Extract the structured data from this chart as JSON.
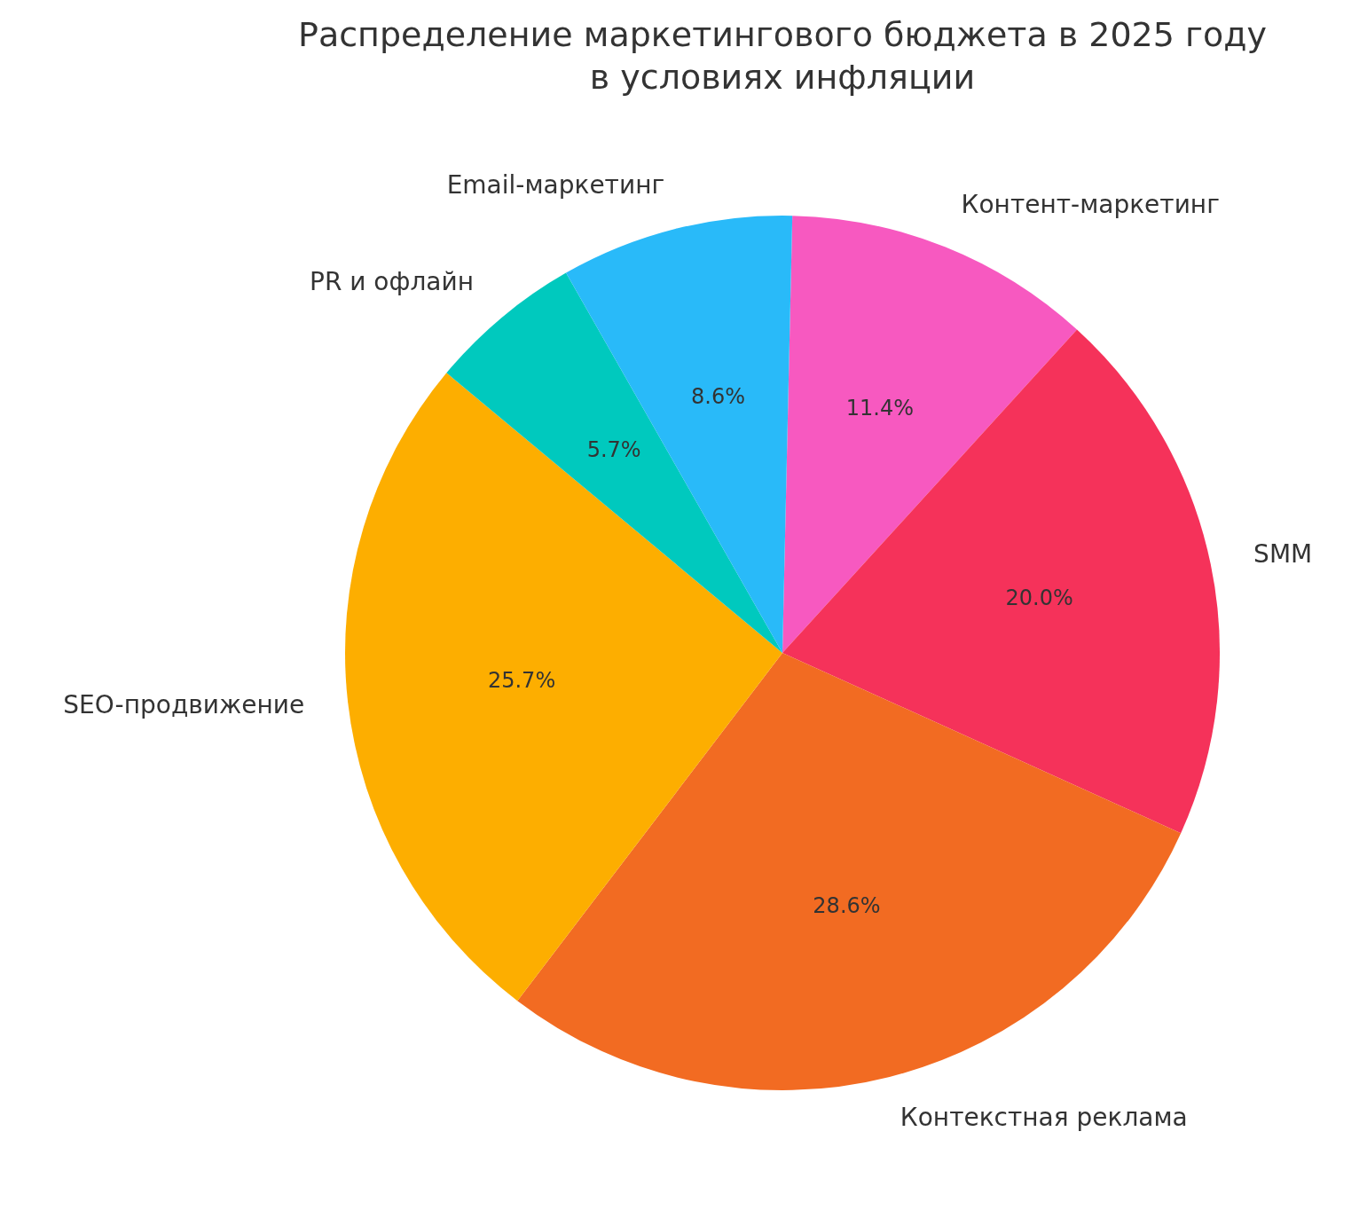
{
  "chart_data": {
    "type": "pie",
    "title": "Распределение маркетингового бюджета в 2025 году\nв условиях инфляции",
    "categories": [
      "Контент-маркетинг",
      "SMM",
      "Контекстная реклама",
      "SEO-продвижение",
      "PR и офлайн",
      "Email-маркетинг"
    ],
    "values": [
      11.4,
      20.0,
      28.6,
      25.7,
      5.7,
      8.6
    ],
    "colors": [
      "#f759c0",
      "#f5325a",
      "#f26b22",
      "#fdae00",
      "#00c9be",
      "#29baf9"
    ],
    "value_labels": [
      "11.4%",
      "20.0%",
      "28.6%",
      "25.7%",
      "5.7%",
      "8.6%"
    ],
    "legend": false
  }
}
